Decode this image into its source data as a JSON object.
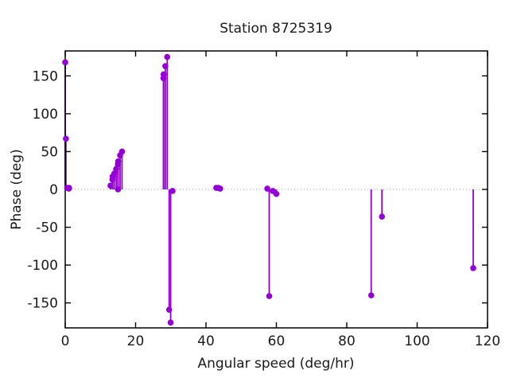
{
  "chart_data": {
    "type": "stem",
    "title": "Station 8725319",
    "xlabel": "Angular speed (deg/hr)",
    "ylabel": "Phase (deg)",
    "xlim": [
      0,
      120
    ],
    "ylim": [
      -183,
      183
    ],
    "xticks": [
      0,
      20,
      40,
      60,
      80,
      100,
      120
    ],
    "yticks": [
      -150,
      -100,
      -50,
      0,
      50,
      100,
      150
    ],
    "grid": false,
    "zero_line": true,
    "legend": "none",
    "series_color": "#9400d3",
    "axis_color": "#000000",
    "zero_line_color": "#a0a0a0",
    "points": [
      [
        0.0,
        168
      ],
      [
        0.2,
        67
      ],
      [
        0.54,
        2
      ],
      [
        1.02,
        1
      ],
      [
        1.1,
        2
      ],
      [
        12.85,
        5
      ],
      [
        13.4,
        13
      ],
      [
        13.47,
        17
      ],
      [
        13.94,
        21
      ],
      [
        14.49,
        27
      ],
      [
        14.96,
        33
      ],
      [
        15.0,
        0
      ],
      [
        15.04,
        37
      ],
      [
        15.59,
        45
      ],
      [
        16.14,
        50
      ],
      [
        27.9,
        147
      ],
      [
        27.97,
        152
      ],
      [
        28.44,
        163
      ],
      [
        28.98,
        175
      ],
      [
        29.53,
        -159
      ],
      [
        29.96,
        -176
      ],
      [
        30.5,
        -2
      ],
      [
        42.93,
        2
      ],
      [
        43.48,
        2
      ],
      [
        44.03,
        1
      ],
      [
        57.42,
        1
      ],
      [
        57.97,
        -141
      ],
      [
        58.98,
        -2
      ],
      [
        60.0,
        -6
      ],
      [
        86.95,
        -140
      ],
      [
        90.0,
        -36
      ],
      [
        115.94,
        -104
      ]
    ]
  }
}
